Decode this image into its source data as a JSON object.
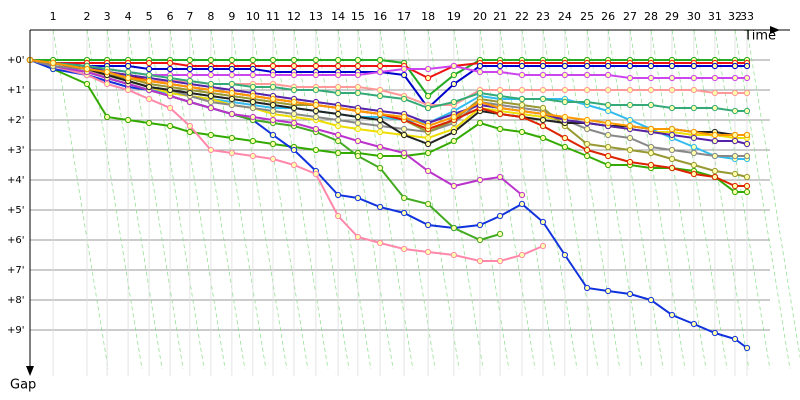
{
  "chart_data": {
    "type": "line",
    "x_label": "Time",
    "y_label": "Gap",
    "xlim": [
      0,
      25.6
    ],
    "ylim": [
      -1,
      10.3
    ],
    "grid": true,
    "x": [
      0,
      0.77,
      1.9,
      2.57,
      3.27,
      3.97,
      4.67,
      5.33,
      6.03,
      6.73,
      7.43,
      8.1,
      8.8,
      9.53,
      10.27,
      10.93,
      11.67,
      12.47,
      13.27,
      14.13,
      15.0,
      15.67,
      16.4,
      17.1,
      17.83,
      18.57,
      19.27,
      20.0,
      20.7,
      21.4,
      22.13,
      22.83,
      23.5,
      23.9
    ],
    "xticks": [
      {
        "value": 0.77,
        "label": "1"
      },
      {
        "value": 1.9,
        "label": "2"
      },
      {
        "value": 2.57,
        "label": "3"
      },
      {
        "value": 3.27,
        "label": "4"
      },
      {
        "value": 3.97,
        "label": "5"
      },
      {
        "value": 4.67,
        "label": "6"
      },
      {
        "value": 5.33,
        "label": "7"
      },
      {
        "value": 6.03,
        "label": "8"
      },
      {
        "value": 6.73,
        "label": "9"
      },
      {
        "value": 7.43,
        "label": "10"
      },
      {
        "value": 8.1,
        "label": "11"
      },
      {
        "value": 8.8,
        "label": "12"
      },
      {
        "value": 9.53,
        "label": "13"
      },
      {
        "value": 10.27,
        "label": "14"
      },
      {
        "value": 10.93,
        "label": "15"
      },
      {
        "value": 11.67,
        "label": "16"
      },
      {
        "value": 12.47,
        "label": "17"
      },
      {
        "value": 13.27,
        "label": "18"
      },
      {
        "value": 14.13,
        "label": "19"
      },
      {
        "value": 15.0,
        "label": "20"
      },
      {
        "value": 15.67,
        "label": "21"
      },
      {
        "value": 16.4,
        "label": "22"
      },
      {
        "value": 17.1,
        "label": "23"
      },
      {
        "value": 17.83,
        "label": "24"
      },
      {
        "value": 18.57,
        "label": "25"
      },
      {
        "value": 19.27,
        "label": "26"
      },
      {
        "value": 20.0,
        "label": "27"
      },
      {
        "value": 20.7,
        "label": "28"
      },
      {
        "value": 21.4,
        "label": "29"
      },
      {
        "value": 22.13,
        "label": "30"
      },
      {
        "value": 22.83,
        "label": "31"
      },
      {
        "value": 23.5,
        "label": "32"
      },
      {
        "value": 23.9,
        "label": "33"
      }
    ],
    "yticks": [
      {
        "value": 0,
        "label": "+0'"
      },
      {
        "value": 1,
        "label": "+1'"
      },
      {
        "value": 2,
        "label": "+2'"
      },
      {
        "value": 3,
        "label": "+3'"
      },
      {
        "value": 4,
        "label": "+4'"
      },
      {
        "value": 5,
        "label": "+5'"
      },
      {
        "value": 6,
        "label": "+6'"
      },
      {
        "value": 7,
        "label": "+7'"
      },
      {
        "value": 8,
        "label": "+8'"
      },
      {
        "value": 9,
        "label": "+9'"
      }
    ],
    "series": [
      {
        "color": "#22aa22",
        "values": [
          0,
          0,
          0,
          0,
          0,
          0,
          0,
          0,
          0,
          0,
          0,
          0,
          0,
          0,
          0,
          0,
          0,
          0.1,
          1.2,
          0.5,
          0,
          0,
          0,
          0,
          0,
          0,
          0,
          0,
          0,
          0,
          0,
          0,
          0,
          0
        ]
      },
      {
        "color": "#ee1111",
        "values": [
          0,
          0.1,
          0.1,
          0.1,
          0.1,
          0.1,
          0.1,
          0.2,
          0.2,
          0.2,
          0.2,
          0.2,
          0.2,
          0.2,
          0.2,
          0.2,
          0.2,
          0.2,
          0.6,
          0.2,
          0.1,
          0.1,
          0.1,
          0.1,
          0.1,
          0.1,
          0.1,
          0.1,
          0.1,
          0.1,
          0.1,
          0.1,
          0.1,
          0.1
        ]
      },
      {
        "color": "#0000cc",
        "values": [
          0,
          0.1,
          0.2,
          0.2,
          0.2,
          0.3,
          0.3,
          0.3,
          0.3,
          0.3,
          0.3,
          0.4,
          0.4,
          0.4,
          0.4,
          0.4,
          0.4,
          0.5,
          1.6,
          0.8,
          0.2,
          0.2,
          0.2,
          0.2,
          0.2,
          0.2,
          0.2,
          0.2,
          0.2,
          0.2,
          0.2,
          0.2,
          0.2,
          0.2
        ]
      },
      {
        "color": "#cc44ee",
        "values": [
          0,
          0.1,
          0.2,
          0.3,
          0.4,
          0.5,
          0.5,
          0.5,
          0.5,
          0.5,
          0.5,
          0.5,
          0.5,
          0.5,
          0.5,
          0.5,
          0.4,
          0.3,
          0.3,
          0.2,
          0.4,
          0.4,
          0.5,
          0.5,
          0.5,
          0.5,
          0.5,
          0.6,
          0.6,
          0.6,
          0.6,
          0.6,
          0.6,
          0.6
        ]
      },
      {
        "color": "#ff9999",
        "values": [
          0,
          0.2,
          0.4,
          0.5,
          0.6,
          0.7,
          0.7,
          0.7,
          0.8,
          0.8,
          0.8,
          0.8,
          0.9,
          0.9,
          0.9,
          0.9,
          1.0,
          1.2,
          1.5,
          1.5,
          1.0,
          1.0,
          1.0,
          1.0,
          1.0,
          1.0,
          1.0,
          1.0,
          1.0,
          1.0,
          1.0,
          1.1,
          1.1,
          1.1
        ]
      },
      {
        "color": "#33bbee",
        "values": [
          0,
          0.2,
          0.4,
          0.6,
          0.8,
          1.0,
          1.1,
          1.2,
          1.3,
          1.4,
          1.5,
          1.6,
          1.6,
          1.7,
          1.8,
          1.9,
          1.9,
          2.0,
          2.1,
          1.7,
          1.2,
          1.3,
          1.3,
          1.3,
          1.3,
          1.5,
          1.7,
          2.0,
          2.3,
          2.6,
          2.9,
          3.2,
          3.3,
          3.3
        ]
      },
      {
        "color": "#33aa00",
        "values": [
          0,
          0.3,
          0.8,
          1.9,
          2.0,
          2.1,
          2.2,
          2.4,
          2.5,
          2.6,
          2.7,
          2.8,
          2.9,
          3.0,
          3.1,
          3.1,
          3.2,
          3.2,
          3.1,
          2.7,
          2.1,
          2.3,
          2.4,
          2.6,
          2.9,
          3.2,
          3.5,
          3.5,
          3.6,
          3.6,
          3.7,
          3.9,
          4.4,
          4.4
        ]
      },
      {
        "color": "#1133dd",
        "values": [
          0,
          0.3,
          0.5,
          0.7,
          0.9,
          1.0,
          1.2,
          1.4,
          1.6,
          1.8,
          2.0,
          2.5,
          3.0,
          3.7,
          4.5,
          4.6,
          4.9,
          5.1,
          5.5,
          5.6,
          5.5,
          5.2,
          4.8,
          5.4,
          6.5,
          7.6,
          7.7,
          7.8,
          8.0,
          8.5,
          8.8,
          9.1,
          9.3,
          9.6
        ]
      },
      {
        "color": "#ff88aa",
        "values": [
          0,
          0.2,
          0.5,
          0.8,
          1.0,
          1.3,
          1.6,
          2.2,
          3.0,
          3.1,
          3.2,
          3.3,
          3.5,
          3.8,
          5.2,
          5.9,
          6.1,
          6.3,
          6.4,
          6.5,
          6.7,
          6.7,
          6.5,
          6.2,
          null,
          null,
          null,
          null,
          null,
          null,
          null,
          null,
          null,
          null
        ]
      },
      {
        "color": "#44aa22",
        "values": [
          0,
          0.2,
          0.4,
          0.6,
          0.8,
          1.0,
          1.2,
          1.4,
          1.6,
          1.8,
          2.0,
          2.1,
          2.2,
          2.4,
          2.7,
          3.2,
          3.6,
          4.6,
          4.8,
          5.6,
          6.0,
          5.8,
          null,
          null,
          null,
          null,
          null,
          null,
          null,
          null,
          null,
          null,
          null,
          null
        ]
      },
      {
        "color": "#bb33cc",
        "values": [
          0,
          0.2,
          0.4,
          0.6,
          0.8,
          1.0,
          1.2,
          1.4,
          1.6,
          1.8,
          1.9,
          2.0,
          2.1,
          2.3,
          2.5,
          2.7,
          2.9,
          3.1,
          3.7,
          4.2,
          4.0,
          3.9,
          4.5,
          null,
          null,
          null,
          null,
          null,
          null,
          null,
          null,
          null,
          null,
          null
        ]
      },
      {
        "color": "#eedd00",
        "values": [
          0,
          0.1,
          0.3,
          0.5,
          0.7,
          0.9,
          1.1,
          1.2,
          1.3,
          1.5,
          1.6,
          1.8,
          1.9,
          2.0,
          2.2,
          2.3,
          2.4,
          2.5,
          2.6,
          2.3,
          1.6,
          1.7,
          1.8,
          1.9,
          2.0,
          2.1,
          2.2,
          2.3,
          2.4,
          2.4,
          2.5,
          2.5,
          2.6,
          2.6
        ]
      },
      {
        "color": "#888888",
        "values": [
          0,
          0.2,
          0.3,
          0.5,
          0.7,
          0.9,
          1.0,
          1.2,
          1.4,
          1.5,
          1.6,
          1.7,
          1.8,
          1.9,
          2.0,
          2.1,
          2.2,
          2.3,
          2.4,
          2.1,
          1.4,
          1.5,
          1.6,
          1.7,
          2.0,
          2.3,
          2.5,
          2.6,
          2.9,
          3.0,
          3.1,
          3.2,
          3.2,
          3.2
        ]
      },
      {
        "color": "#999933",
        "values": [
          0,
          0.1,
          0.3,
          0.5,
          0.6,
          0.8,
          0.9,
          1.0,
          1.1,
          1.2,
          1.3,
          1.4,
          1.5,
          1.5,
          1.6,
          1.7,
          1.8,
          2.0,
          2.4,
          2.0,
          1.3,
          1.4,
          1.5,
          1.6,
          2.2,
          2.8,
          2.9,
          3.0,
          3.1,
          3.3,
          3.5,
          3.7,
          3.8,
          3.9
        ]
      },
      {
        "color": "#222222",
        "values": [
          0,
          0.1,
          0.3,
          0.5,
          0.7,
          0.9,
          1.0,
          1.1,
          1.2,
          1.3,
          1.4,
          1.5,
          1.6,
          1.7,
          1.8,
          1.9,
          2.0,
          2.5,
          2.8,
          2.4,
          1.7,
          1.8,
          1.9,
          2.0,
          2.1,
          2.1,
          2.2,
          2.2,
          2.3,
          2.3,
          2.4,
          2.4,
          2.5,
          2.5
        ]
      },
      {
        "color": "#dd2200",
        "values": [
          0,
          0.1,
          0.2,
          0.4,
          0.5,
          0.7,
          0.8,
          0.9,
          1.0,
          1.1,
          1.2,
          1.3,
          1.4,
          1.5,
          1.6,
          1.7,
          1.8,
          2.0,
          2.3,
          2.0,
          1.6,
          1.8,
          1.9,
          2.2,
          2.6,
          3.0,
          3.2,
          3.4,
          3.5,
          3.6,
          3.8,
          3.9,
          4.2,
          4.2
        ]
      },
      {
        "color": "#5522aa",
        "values": [
          0,
          0.1,
          0.2,
          0.4,
          0.5,
          0.6,
          0.7,
          0.8,
          0.9,
          1.0,
          1.1,
          1.2,
          1.3,
          1.4,
          1.5,
          1.6,
          1.7,
          1.8,
          2.1,
          1.8,
          1.5,
          1.6,
          1.7,
          1.8,
          2.0,
          2.1,
          2.2,
          2.3,
          2.4,
          2.5,
          2.6,
          2.7,
          2.7,
          2.8
        ]
      },
      {
        "color": "#33aa77",
        "values": [
          0,
          0.1,
          0.2,
          0.3,
          0.4,
          0.5,
          0.6,
          0.7,
          0.8,
          0.8,
          0.9,
          0.9,
          1.0,
          1.0,
          1.1,
          1.1,
          1.2,
          1.3,
          1.6,
          1.4,
          1.1,
          1.2,
          1.3,
          1.3,
          1.4,
          1.4,
          1.5,
          1.5,
          1.5,
          1.6,
          1.6,
          1.6,
          1.7,
          1.7
        ]
      },
      {
        "color": "#ff9900",
        "values": [
          0,
          0.1,
          0.3,
          0.4,
          0.6,
          0.7,
          0.8,
          0.9,
          1.0,
          1.1,
          1.2,
          1.3,
          1.4,
          1.5,
          1.6,
          1.7,
          1.8,
          1.9,
          2.2,
          1.9,
          1.4,
          1.6,
          1.7,
          1.8,
          1.9,
          2.0,
          2.1,
          2.2,
          2.3,
          2.3,
          2.4,
          2.5,
          2.5,
          2.5
        ]
      }
    ]
  }
}
